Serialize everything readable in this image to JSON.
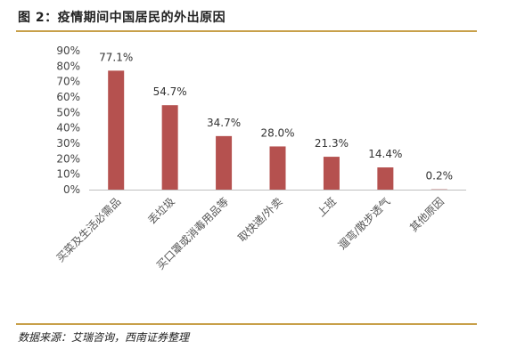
{
  "figure": {
    "title": "图 2：疫情期间中国居民的外出原因",
    "source": "数据来源：艾瑞咨询，西南证券整理"
  },
  "chart_data": {
    "type": "bar",
    "title": "",
    "xlabel": "",
    "ylabel": "",
    "categories": [
      "买菜及生活必需品",
      "丢垃圾",
      "买口罩或消毒用品等",
      "取快递/外卖",
      "上班",
      "遛弯/散步透气",
      "其他原因"
    ],
    "values": [
      77.1,
      54.7,
      34.7,
      28.0,
      21.3,
      14.4,
      0.2
    ],
    "value_labels": [
      "77.1%",
      "54.7%",
      "34.7%",
      "28.0%",
      "21.3%",
      "14.4%",
      "0.2%"
    ],
    "ylim": [
      0,
      90
    ],
    "yticks": [
      0,
      10,
      20,
      30,
      40,
      50,
      60,
      70,
      80,
      90
    ],
    "ytick_labels": [
      "0%",
      "10%",
      "20%",
      "30%",
      "40%",
      "50%",
      "60%",
      "70%",
      "80%",
      "90%"
    ],
    "grid": false,
    "legend": "none",
    "bar_color": "#B5514F"
  }
}
